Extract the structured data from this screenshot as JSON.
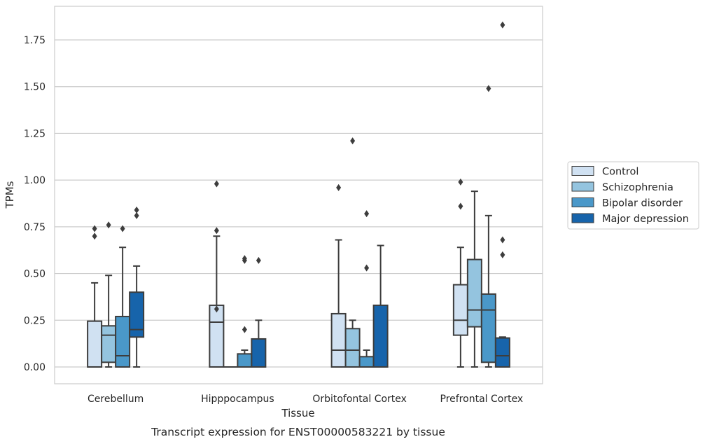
{
  "chart_data": {
    "type": "box",
    "title": "",
    "caption": "Transcript expression for ENST00000583221 by tissue",
    "xlabel": "Tissue",
    "ylabel": "TPMs",
    "ylim": [
      -0.09,
      1.93
    ],
    "yticks": [
      0.0,
      0.25,
      0.5,
      0.75,
      1.0,
      1.25,
      1.5,
      1.75
    ],
    "ytick_labels": [
      "0.00",
      "0.25",
      "0.50",
      "0.75",
      "1.00",
      "1.25",
      "1.50",
      "1.75"
    ],
    "grid": "horizontal",
    "legend_position": "right-outside",
    "categories": [
      "Cerebellum",
      "Hipppocampus",
      "Orbitofontal Cortex",
      "Prefrontal Cortex"
    ],
    "series": [
      {
        "name": "Control",
        "color": "#d0e1f2",
        "boxes": [
          {
            "q1": 0.0,
            "median": 0.0,
            "q3": 0.245,
            "whisker_low": 0.0,
            "whisker_high": 0.45,
            "outliers": [
              0.7,
              0.74
            ]
          },
          {
            "q1": 0.0,
            "median": 0.24,
            "q3": 0.33,
            "whisker_low": 0.0,
            "whisker_high": 0.7,
            "outliers": [
              0.31,
              0.73,
              0.98
            ]
          },
          {
            "q1": 0.0,
            "median": 0.09,
            "q3": 0.285,
            "whisker_low": 0.0,
            "whisker_high": 0.68,
            "outliers": [
              0.96
            ]
          },
          {
            "q1": 0.17,
            "median": 0.25,
            "q3": 0.44,
            "whisker_low": 0.0,
            "whisker_high": 0.64,
            "outliers": [
              0.86,
              0.99
            ]
          }
        ]
      },
      {
        "name": "Schizophrenia",
        "color": "#94c4df",
        "boxes": [
          {
            "q1": 0.025,
            "median": 0.17,
            "q3": 0.22,
            "whisker_low": 0.0,
            "whisker_high": 0.49,
            "outliers": [
              0.76
            ]
          },
          {
            "q1": 0.0,
            "median": 0.0,
            "q3": 0.0,
            "whisker_low": 0.0,
            "whisker_high": 0.0,
            "outliers": []
          },
          {
            "q1": 0.0,
            "median": 0.09,
            "q3": 0.205,
            "whisker_low": 0.0,
            "whisker_high": 0.25,
            "outliers": [
              1.21
            ]
          },
          {
            "q1": 0.215,
            "median": 0.305,
            "q3": 0.575,
            "whisker_low": 0.0,
            "whisker_high": 0.94,
            "outliers": []
          }
        ]
      },
      {
        "name": "Bipolar disorder",
        "color": "#4a98c9",
        "boxes": [
          {
            "q1": 0.0,
            "median": 0.06,
            "q3": 0.27,
            "whisker_low": 0.0,
            "whisker_high": 0.64,
            "outliers": [
              0.74
            ]
          },
          {
            "q1": 0.0,
            "median": 0.0,
            "q3": 0.07,
            "whisker_low": 0.0,
            "whisker_high": 0.09,
            "outliers": [
              0.2,
              0.57,
              0.58
            ]
          },
          {
            "q1": 0.0,
            "median": 0.0,
            "q3": 0.055,
            "whisker_low": 0.0,
            "whisker_high": 0.09,
            "outliers": [
              0.53,
              0.82
            ]
          },
          {
            "q1": 0.025,
            "median": 0.305,
            "q3": 0.39,
            "whisker_low": 0.0,
            "whisker_high": 0.81,
            "outliers": [
              1.49
            ]
          }
        ]
      },
      {
        "name": "Major depression",
        "color": "#1764ab",
        "boxes": [
          {
            "q1": 0.16,
            "median": 0.2,
            "q3": 0.4,
            "whisker_low": 0.0,
            "whisker_high": 0.54,
            "outliers": [
              0.81,
              0.84
            ]
          },
          {
            "q1": 0.0,
            "median": 0.0,
            "q3": 0.15,
            "whisker_low": 0.0,
            "whisker_high": 0.25,
            "outliers": [
              0.57
            ]
          },
          {
            "q1": 0.0,
            "median": 0.0,
            "q3": 0.33,
            "whisker_low": 0.0,
            "whisker_high": 0.65,
            "outliers": []
          },
          {
            "q1": 0.0,
            "median": 0.06,
            "q3": 0.155,
            "whisker_low": 0.0,
            "whisker_high": 0.16,
            "outliers": [
              0.6,
              0.68,
              1.83
            ]
          }
        ]
      }
    ]
  }
}
